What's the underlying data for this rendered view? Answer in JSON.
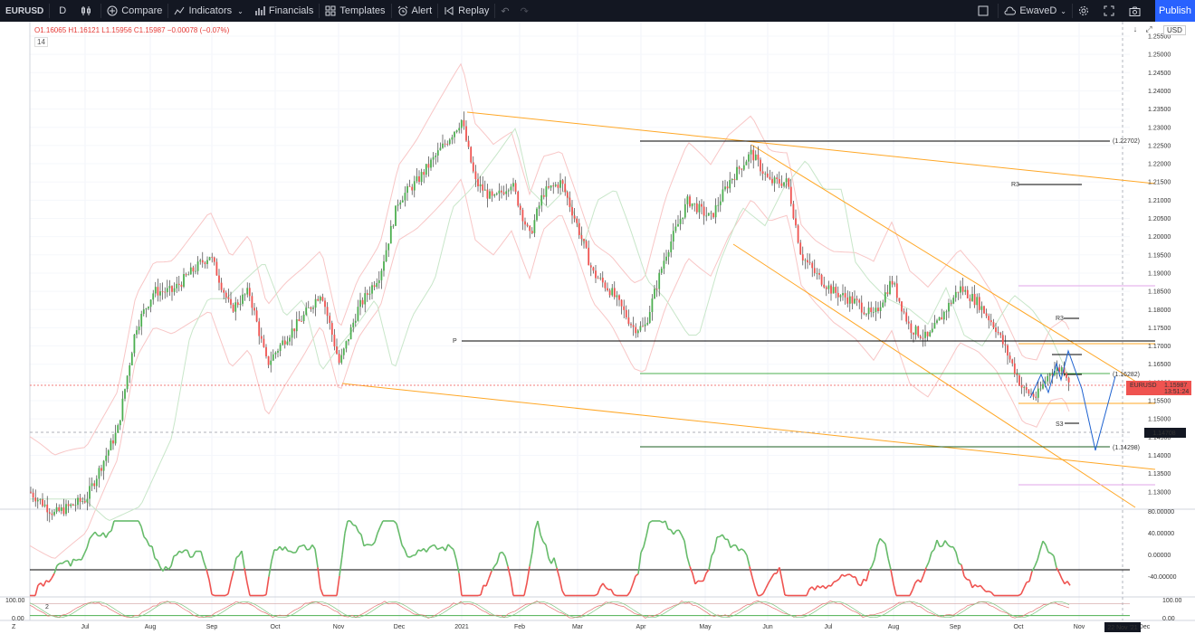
{
  "toolbar": {
    "symbol": "EURUSD",
    "interval": "D",
    "compare": "Compare",
    "indicators": "Indicators",
    "financials": "Financials",
    "templates": "Templates",
    "alert": "Alert",
    "replay": "Replay",
    "layout": "EwaveD",
    "publish": "Publish"
  },
  "legend": {
    "ohlc": "O1.16065 H1.16121 L1.15956 C1.15987 −0.00078 (−0.07%)",
    "indicator_badge": "14",
    "currency": "USD"
  },
  "price_axis": [
    "1.25500",
    "1.25000",
    "1.24500",
    "1.24000",
    "1.23500",
    "1.23000",
    "1.22500",
    "1.22000",
    "1.21500",
    "1.21000",
    "1.20500",
    "1.20000",
    "1.19500",
    "1.19000",
    "1.18500",
    "1.18000",
    "1.17500",
    "1.17000",
    "1.16500",
    "1.16000",
    "1.15500",
    "1.15000",
    "1.14500",
    "1.14000",
    "1.13500",
    "1.13000"
  ],
  "time_axis": [
    "Jul",
    "Aug",
    "Sep",
    "Oct",
    "Nov",
    "Dec",
    "2021",
    "Feb",
    "Mar",
    "Apr",
    "May",
    "Jun",
    "Jul",
    "Aug",
    "Sep",
    "Oct",
    "Nov",
    "Dec"
  ],
  "osc_axis": [
    "80.00000",
    "40.00000",
    "0.00000",
    "-40.00000"
  ],
  "stoch_axis_left": [
    "100.00",
    "0.00"
  ],
  "stoch_axis_right": [
    "100.00",
    "0.00"
  ],
  "stoch_badge": "2",
  "left_corner": "Z",
  "annotations": {
    "level_top": "(1.22702)",
    "level_mid": "(1.16282)",
    "level_low": "(1.14298)",
    "r3": "R3",
    "r2": "R3",
    "pivot": "P",
    "s3": "S3",
    "last_price_symbol": "EURUSD",
    "last_price": "1.15987",
    "countdown": "13:51:24",
    "crosshair_price": "1.14708",
    "crosshair_date": "22 Nov '21"
  },
  "colors": {
    "up": "#4caf50",
    "down": "#ef5350",
    "fib": "#ffa726",
    "bands": "#f8c6c6",
    "bands_green": "#c8e6c9",
    "accent": "#2962ff",
    "toolbar": "#131722"
  }
}
